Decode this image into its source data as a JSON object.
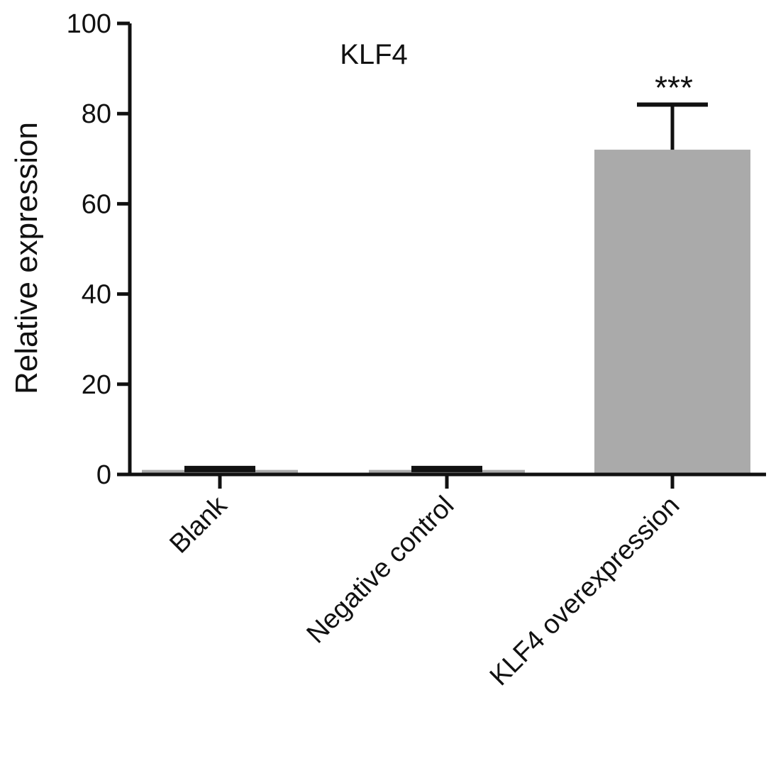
{
  "chart_data": {
    "type": "bar",
    "title": "KLF4",
    "xlabel": "",
    "ylabel": "Relative expression",
    "ylim": [
      0,
      100
    ],
    "yticks": [
      0,
      20,
      40,
      60,
      80,
      100
    ],
    "categories": [
      "Blank",
      "Negative control",
      "KLF4 overexpression"
    ],
    "values": [
      1,
      1,
      72
    ],
    "error": [
      0.2,
      0.2,
      10
    ],
    "annotations": [
      "",
      "",
      "***"
    ],
    "bar_color": "#aaaaaa",
    "axis_color": "#111111",
    "grid": false
  }
}
